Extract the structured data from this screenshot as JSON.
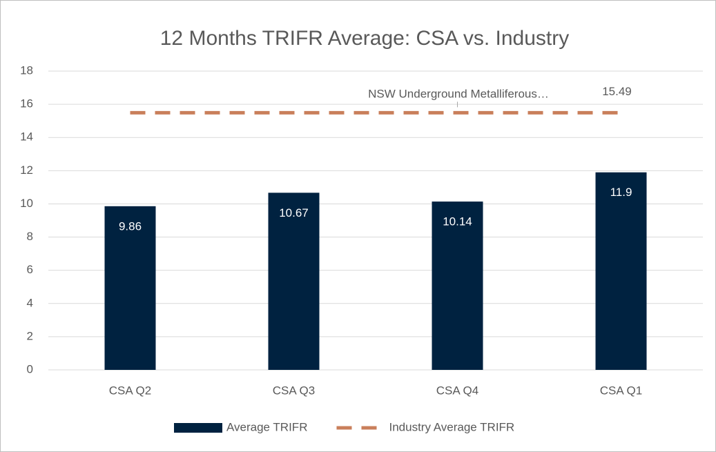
{
  "chart_data": {
    "type": "bar",
    "title": "12 Months TRIFR Average: CSA vs. Industry",
    "categories": [
      "CSA Q2",
      "CSA Q3",
      "CSA Q4",
      "CSA Q1"
    ],
    "series": [
      {
        "name": "Average TRIFR",
        "type": "bar",
        "color": "#002240",
        "values": [
          9.86,
          10.67,
          10.14,
          11.9
        ]
      },
      {
        "name": "Industry Average TRIFR",
        "type": "line",
        "dashed": true,
        "color": "#c97f5b",
        "values": [
          15.49,
          15.49,
          15.49,
          15.49
        ]
      }
    ],
    "annotation": "NSW Underground Metalliferous…",
    "ylim": [
      0,
      18
    ],
    "yticks": [
      0,
      2,
      4,
      6,
      8,
      10,
      12,
      14,
      16,
      18
    ],
    "grid": true,
    "legend": "bottom"
  }
}
